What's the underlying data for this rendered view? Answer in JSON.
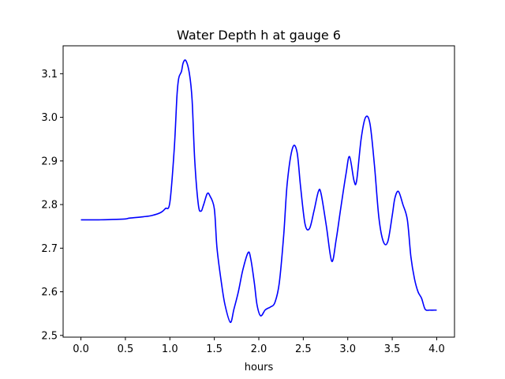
{
  "chart_data": {
    "type": "line",
    "title": "Water Depth h at gauge 6",
    "xlabel": "hours",
    "ylabel": "",
    "xlim": [
      -0.2,
      4.2
    ],
    "ylim": [
      2.496,
      3.164
    ],
    "xticks": [
      0.0,
      0.5,
      1.0,
      1.5,
      2.0,
      2.5,
      3.0,
      3.5,
      4.0
    ],
    "xtick_labels": [
      "0.0",
      "0.5",
      "1.0",
      "1.5",
      "2.0",
      "2.5",
      "3.0",
      "3.5",
      "4.0"
    ],
    "yticks": [
      2.5,
      2.6,
      2.7,
      2.8,
      2.9,
      3.0,
      3.1
    ],
    "ytick_labels": [
      "2.5",
      "2.6",
      "2.7",
      "2.8",
      "2.9",
      "3.0",
      "3.1"
    ],
    "grid": false,
    "series": [
      {
        "color": "#0000ff",
        "x": [
          0.0,
          0.2,
          0.4,
          0.5,
          0.55,
          0.7,
          0.8,
          0.9,
          0.95,
          1.0,
          1.05,
          1.08,
          1.1,
          1.13,
          1.15,
          1.18,
          1.22,
          1.25,
          1.28,
          1.32,
          1.35,
          1.38,
          1.42,
          1.45,
          1.5,
          1.53,
          1.58,
          1.62,
          1.68,
          1.72,
          1.77,
          1.82,
          1.88,
          1.91,
          1.95,
          1.98,
          2.02,
          2.07,
          2.1,
          2.13,
          2.18,
          2.23,
          2.28,
          2.32,
          2.38,
          2.43,
          2.47,
          2.52,
          2.57,
          2.62,
          2.67,
          2.7,
          2.76,
          2.82,
          2.87,
          2.92,
          2.98,
          3.02,
          3.07,
          3.1,
          3.15,
          3.2,
          3.25,
          3.3,
          3.35,
          3.4,
          3.45,
          3.5,
          3.53,
          3.57,
          3.62,
          3.67,
          3.71,
          3.75,
          3.79,
          3.83,
          3.87,
          3.92,
          3.97,
          4.0
        ],
        "y": [
          2.765,
          2.765,
          2.766,
          2.767,
          2.769,
          2.772,
          2.775,
          2.782,
          2.791,
          2.805,
          2.93,
          3.05,
          3.09,
          3.105,
          3.125,
          3.13,
          3.1,
          3.04,
          2.9,
          2.8,
          2.785,
          2.8,
          2.825,
          2.82,
          2.79,
          2.7,
          2.62,
          2.57,
          2.53,
          2.56,
          2.6,
          2.65,
          2.69,
          2.675,
          2.62,
          2.57,
          2.545,
          2.558,
          2.562,
          2.565,
          2.575,
          2.62,
          2.73,
          2.85,
          2.93,
          2.92,
          2.84,
          2.755,
          2.745,
          2.785,
          2.83,
          2.825,
          2.75,
          2.67,
          2.72,
          2.79,
          2.87,
          2.91,
          2.855,
          2.855,
          2.95,
          3.0,
          2.985,
          2.89,
          2.77,
          2.715,
          2.715,
          2.775,
          2.815,
          2.83,
          2.8,
          2.765,
          2.68,
          2.63,
          2.6,
          2.585,
          2.56,
          2.558,
          2.558,
          2.558
        ]
      }
    ]
  }
}
